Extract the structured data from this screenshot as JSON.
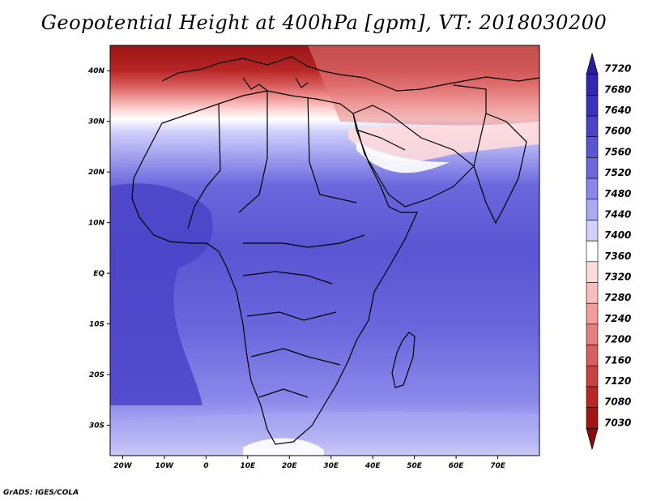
{
  "title": "Geopotential Height at 400hPa [gpm], VT: 2018030200",
  "credit": "GrADS: IGES/COLA",
  "map": {
    "field": "Geopotential Height",
    "level": "400hPa",
    "units": "gpm",
    "valid_time": "2018030200",
    "lon_range": [
      -23,
      80
    ],
    "lat_range": [
      -36,
      45
    ],
    "projection": "latlon",
    "lon_ticks": [
      "20W",
      "10W",
      "0",
      "10E",
      "20E",
      "30E",
      "40E",
      "50E",
      "60E",
      "70E"
    ],
    "lat_ticks": [
      "40N",
      "30N",
      "20N",
      "10N",
      "EQ",
      "10S",
      "20S",
      "30S"
    ]
  },
  "colorbar": {
    "labels": [
      "7720",
      "7680",
      "7640",
      "7600",
      "7560",
      "7520",
      "7480",
      "7440",
      "7400",
      "7360",
      "7320",
      "7280",
      "7240",
      "7200",
      "7160",
      "7120",
      "7080",
      "7030"
    ],
    "colors": [
      "#2a1ea0",
      "#3426b0",
      "#3d32bd",
      "#4a43c8",
      "#5a55d3",
      "#6b68dd",
      "#8a87ea",
      "#aaa9f2",
      "#d0d0fa",
      "#ffffff",
      "#ffdcdc",
      "#fbbcbc",
      "#f29c9c",
      "#e57f7f",
      "#d85f5f",
      "#c94141",
      "#b82626",
      "#a11515",
      "#8b0c0c"
    ]
  }
}
